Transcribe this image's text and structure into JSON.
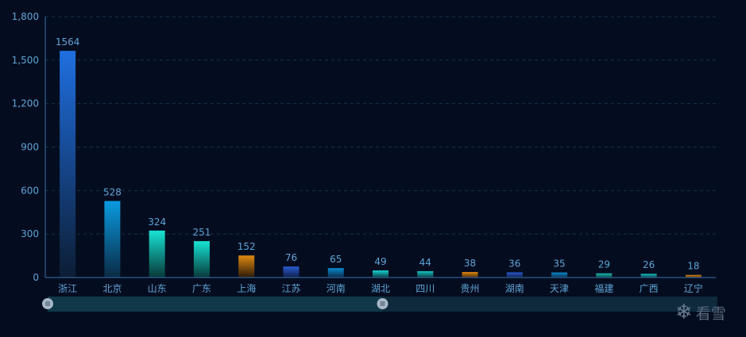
{
  "chart_data": {
    "type": "bar",
    "categories": [
      "浙江",
      "北京",
      "山东",
      "广东",
      "上海",
      "江苏",
      "河南",
      "湖北",
      "四川",
      "贵州",
      "湖南",
      "天津",
      "福建",
      "广西",
      "辽宁"
    ],
    "values": [
      1564,
      528,
      324,
      251,
      152,
      76,
      65,
      49,
      44,
      38,
      36,
      35,
      29,
      26,
      18
    ],
    "value_labels": [
      "1564",
      "528",
      "324",
      "251",
      "152",
      "76",
      "65",
      "49",
      "44",
      "38",
      "36",
      "35",
      "29",
      "26",
      "18"
    ],
    "y_ticks": [
      0,
      300,
      600,
      900,
      1200,
      1500,
      1800
    ],
    "y_tick_labels": [
      "0",
      "300",
      "600",
      "900",
      "1,200",
      "1,500",
      "1,800"
    ],
    "ylim": [
      0,
      1800
    ],
    "grid": true,
    "bar_colors": [
      [
        "#1f6fe0",
        "#0c1d34"
      ],
      [
        "#0a9be0",
        "#0a2a44"
      ],
      [
        "#16e3d3",
        "#083838"
      ],
      [
        "#16e3d3",
        "#083838"
      ],
      [
        "#e08a10",
        "#2a1a0a"
      ],
      [
        "#2a5ad0",
        "#0f1f48"
      ],
      [
        "#0a8ad0",
        "#0a2a48"
      ],
      [
        "#16d3d3",
        "#0a3a40"
      ],
      [
        "#16c3c3",
        "#0a3a40"
      ],
      [
        "#e08a10",
        "#4a2a0a"
      ],
      [
        "#2a5ad0",
        "#0f1f48"
      ],
      [
        "#0a8ad0",
        "#0a2a48"
      ],
      [
        "#16c3b3",
        "#0a3a40"
      ],
      [
        "#16c3c3",
        "#0a3a40"
      ],
      [
        "#e08a10",
        "#4a2a0a"
      ]
    ],
    "axis_color": "#3a6fb0",
    "grid_color": "#15304f",
    "label_color": "#5ea3d6"
  },
  "data_zoom": {
    "start": 0,
    "end": 50,
    "track_color": "#0e2a3c",
    "fill_color": "#113848",
    "handle_color": "#a8b8c8",
    "handle_icon": "grip-lines-icon"
  },
  "watermark": {
    "icon": "snowflake-icon",
    "text": "看雪"
  }
}
